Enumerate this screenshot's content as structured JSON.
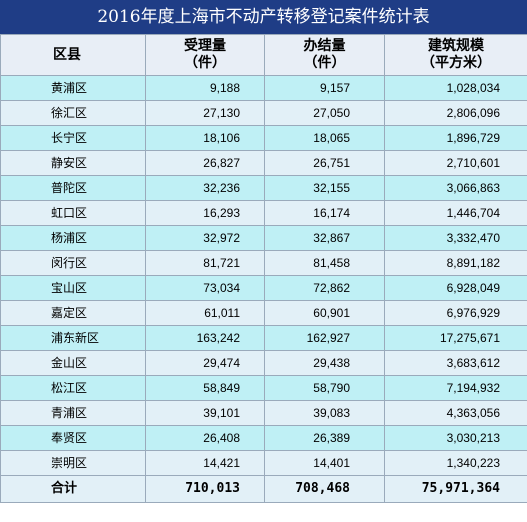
{
  "title": "2016年度上海市不动产转移登记案件统计表",
  "headers": {
    "district": "区县",
    "accepted": "受理量\n（件）",
    "completed": "办结量\n（件）",
    "area": "建筑规模\n（平方米）"
  },
  "rows": [
    {
      "district": "黄浦区",
      "accepted": "9,188",
      "completed": "9,157",
      "area": "1,028,034"
    },
    {
      "district": "徐汇区",
      "accepted": "27,130",
      "completed": "27,050",
      "area": "2,806,096"
    },
    {
      "district": "长宁区",
      "accepted": "18,106",
      "completed": "18,065",
      "area": "1,896,729"
    },
    {
      "district": "静安区",
      "accepted": "26,827",
      "completed": "26,751",
      "area": "2,710,601"
    },
    {
      "district": "普陀区",
      "accepted": "32,236",
      "completed": "32,155",
      "area": "3,066,863"
    },
    {
      "district": "虹口区",
      "accepted": "16,293",
      "completed": "16,174",
      "area": "1,446,704"
    },
    {
      "district": "杨浦区",
      "accepted": "32,972",
      "completed": "32,867",
      "area": "3,332,470"
    },
    {
      "district": "闵行区",
      "accepted": "81,721",
      "completed": "81,458",
      "area": "8,891,182"
    },
    {
      "district": "宝山区",
      "accepted": "73,034",
      "completed": "72,862",
      "area": "6,928,049"
    },
    {
      "district": "嘉定区",
      "accepted": "61,011",
      "completed": "60,901",
      "area": "6,976,929"
    },
    {
      "district": "浦东新区",
      "accepted": "163,242",
      "completed": "162,927",
      "area": "17,275,671"
    },
    {
      "district": "金山区",
      "accepted": "29,474",
      "completed": "29,438",
      "area": "3,683,612"
    },
    {
      "district": "松江区",
      "accepted": "58,849",
      "completed": "58,790",
      "area": "7,194,932"
    },
    {
      "district": "青浦区",
      "accepted": "39,101",
      "completed": "39,083",
      "area": "4,363,056"
    },
    {
      "district": "奉贤区",
      "accepted": "26,408",
      "completed": "26,389",
      "area": "3,030,213"
    },
    {
      "district": "崇明区",
      "accepted": "14,421",
      "completed": "14,401",
      "area": "1,340,223"
    }
  ],
  "total": {
    "district": "合计",
    "accepted": "710,013",
    "completed": "708,468",
    "area": "75,971,364"
  },
  "colors": {
    "title_bg": "#1f3d86",
    "header_bg": "#e8eef6",
    "row_odd": "#bff0f5",
    "row_even": "#e2f0f7",
    "border": "#9aaabb"
  }
}
